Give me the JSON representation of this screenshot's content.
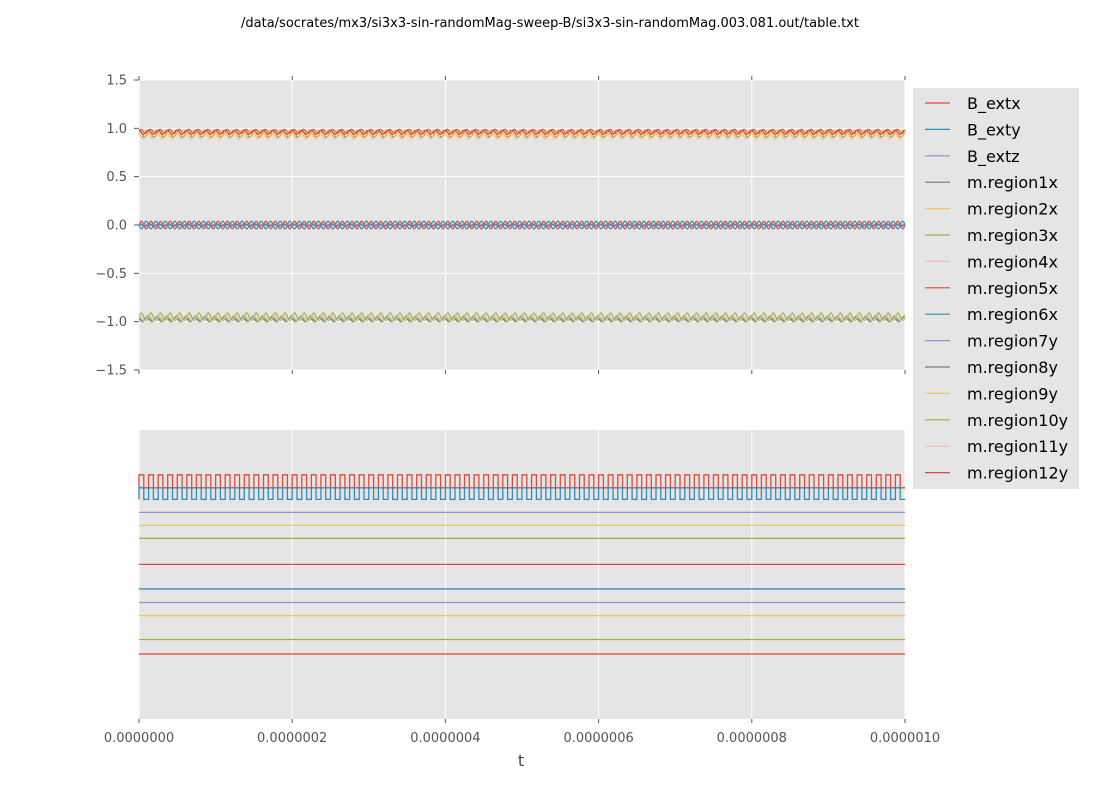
{
  "chart_data": [
    {
      "type": "line",
      "title": "/data/socrates/mx3/si3x3-sin-randomMag-sweep-B/si3x3-sin-randomMag.003.081.out/table.txt",
      "xlabel": "",
      "ylabel": "",
      "xlim": [
        0,
        1e-06
      ],
      "ylim": [
        -1.5,
        1.5
      ],
      "yticks": [
        "1.5",
        "1.0",
        "0.5",
        "0.0",
        "−0.5",
        "−1.0",
        "−1.5"
      ],
      "ytick_values": [
        1.5,
        1.0,
        0.5,
        0.0,
        -0.5,
        -1.0,
        -1.5
      ],
      "grid": true,
      "legend_position": "outside-right",
      "oscillation_cycles": 80,
      "series": [
        {
          "name": "B_extx",
          "color": "#E24A33",
          "base": 0.0,
          "amplitude": 0.04,
          "phase": 0
        },
        {
          "name": "B_exty",
          "color": "#348ABD",
          "base": 0.0,
          "amplitude": 0.04,
          "phase": 3.14
        },
        {
          "name": "B_extz",
          "color": "#988ED5",
          "base": 0.0,
          "amplitude": 0.0,
          "phase": 0
        },
        {
          "name": "m.region1x",
          "color": "#777777",
          "base": 0.94,
          "amplitude": 0.03,
          "phase": 1
        },
        {
          "name": "m.region2x",
          "color": "#FBC15E",
          "base": 0.92,
          "amplitude": 0.03,
          "phase": 2
        },
        {
          "name": "m.region3x",
          "color": "#8EBA42",
          "base": -0.95,
          "amplitude": 0.04,
          "phase": 0
        },
        {
          "name": "m.region4x",
          "color": "#FFB5B8",
          "base": -0.96,
          "amplitude": 0.03,
          "phase": 1.5
        },
        {
          "name": "m.region5x",
          "color": "#E24A33",
          "base": 0.97,
          "amplitude": 0.02,
          "phase": 0.5
        },
        {
          "name": "m.region6x",
          "color": "#348ABD",
          "base": -0.98,
          "amplitude": 0.02,
          "phase": 2.5
        },
        {
          "name": "m.region7y",
          "color": "#988ED5",
          "base": 0.0,
          "amplitude": 0.01,
          "phase": 0
        },
        {
          "name": "m.region8y",
          "color": "#777777",
          "base": 0.0,
          "amplitude": 0.01,
          "phase": 1
        },
        {
          "name": "m.region9y",
          "color": "#FBC15E",
          "base": 0.95,
          "amplitude": 0.03,
          "phase": 3
        },
        {
          "name": "m.region10y",
          "color": "#8EBA42",
          "base": -0.97,
          "amplitude": 0.03,
          "phase": 2
        },
        {
          "name": "m.region11y",
          "color": "#FFB5B8",
          "base": -0.97,
          "amplitude": 0.02,
          "phase": 0.8
        },
        {
          "name": "m.region12y",
          "color": "#E24A33",
          "base": 0.96,
          "amplitude": 0.02,
          "phase": 1.8
        }
      ]
    },
    {
      "type": "line",
      "xlabel": "t",
      "xlim": [
        0,
        1e-06
      ],
      "xticks": [
        "0.0000000",
        "0.0000002",
        "0.0000004",
        "0.0000006",
        "0.0000008",
        "0.0000010"
      ],
      "xtick_values": [
        0,
        2e-07,
        4e-07,
        6e-07,
        8e-07,
        1e-06
      ],
      "yticks": [],
      "grid": true,
      "ylim": [
        0,
        1
      ],
      "square_cycles": 80,
      "series": [
        {
          "color": "#E24A33",
          "shape": "square",
          "low": 0.8,
          "high": 0.845
        },
        {
          "color": "#348ABD",
          "shape": "square",
          "low": 0.76,
          "high": 0.8
        },
        {
          "color": "#988ED5",
          "shape": "flat",
          "low": 0.715,
          "high": 0.715
        },
        {
          "color": "#FBC15E",
          "shape": "flat",
          "low": 0.67,
          "high": 0.67
        },
        {
          "color": "#8EBA42",
          "shape": "flat",
          "low": 0.625,
          "high": 0.625
        },
        {
          "color": "#E24A33",
          "shape": "flat",
          "low": 0.535,
          "high": 0.535
        },
        {
          "color": "#348ABD",
          "shape": "flat",
          "low": 0.45,
          "high": 0.45
        },
        {
          "color": "#988ED5",
          "shape": "flat",
          "low": 0.403,
          "high": 0.403
        },
        {
          "color": "#FBC15E",
          "shape": "flat",
          "low": 0.358,
          "high": 0.358
        },
        {
          "color": "#8EBA42",
          "shape": "flat",
          "low": 0.275,
          "high": 0.275
        },
        {
          "color": "#E24A33",
          "shape": "flat",
          "low": 0.225,
          "high": 0.225
        }
      ]
    }
  ]
}
